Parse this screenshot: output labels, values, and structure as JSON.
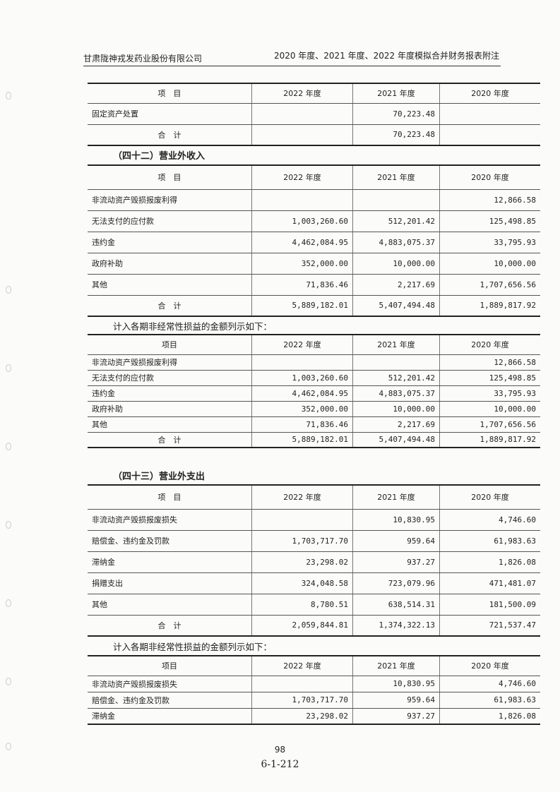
{
  "header": {
    "company": "甘肃陇神戎发药业股份有限公司",
    "report": "2020 年度、2021 年度、2022 年度模拟合并财务报表附注"
  },
  "columns": [
    "项　目",
    "2022 年度",
    "2021 年度",
    "2020 年度"
  ],
  "columns_alt": [
    "项目",
    "2022 年度",
    "2021 年度",
    "2020 年度"
  ],
  "total_label": "合　计",
  "table1": {
    "rows": [
      [
        "固定资产处置",
        "",
        "70,223.48",
        ""
      ]
    ],
    "total": [
      "",
      "70,223.48",
      ""
    ]
  },
  "section42": {
    "title": "（四十二）营业外收入"
  },
  "table2": {
    "rows": [
      [
        "非流动资产毁损报废利得",
        "",
        "",
        "12,866.58"
      ],
      [
        "无法支付的应付款",
        "1,003,260.60",
        "512,201.42",
        "125,498.85"
      ],
      [
        "违约金",
        "4,462,084.95",
        "4,883,075.37",
        "33,795.93"
      ],
      [
        "政府补助",
        "352,000.00",
        "10,000.00",
        "10,000.00"
      ],
      [
        "其他",
        "71,836.46",
        "2,217.69",
        "1,707,656.56"
      ]
    ],
    "total": [
      "5,889,182.01",
      "5,407,494.48",
      "1,889,817.92"
    ]
  },
  "note1": "计入各期非经常性损益的金额列示如下：",
  "table3": {
    "rows": [
      [
        "非流动资产毁损报废利得",
        "",
        "",
        "12,866.58"
      ],
      [
        "无法支付的应付款",
        "1,003,260.60",
        "512,201.42",
        "125,498.85"
      ],
      [
        "违约金",
        "4,462,084.95",
        "4,883,075.37",
        "33,795.93"
      ],
      [
        "政府补助",
        "352,000.00",
        "10,000.00",
        "10,000.00"
      ],
      [
        "其他",
        "71,836.46",
        "2,217.69",
        "1,707,656.56"
      ]
    ],
    "total": [
      "5,889,182.01",
      "5,407,494.48",
      "1,889,817.92"
    ]
  },
  "section43": {
    "title": "（四十三）营业外支出"
  },
  "table4": {
    "rows": [
      [
        "非流动资产毁损报废损失",
        "",
        "10,830.95",
        "4,746.60"
      ],
      [
        "赔偿金、违约金及罚款",
        "1,703,717.70",
        "959.64",
        "61,983.63"
      ],
      [
        "滞纳金",
        "23,298.02",
        "937.27",
        "1,826.08"
      ],
      [
        "捐赠支出",
        "324,048.58",
        "723,079.96",
        "471,481.07"
      ],
      [
        "其他",
        "8,780.51",
        "638,514.31",
        "181,500.09"
      ]
    ],
    "total": [
      "2,059,844.81",
      "1,374,322.13",
      "721,537.47"
    ]
  },
  "note2": "计入各期非经常性损益的金额列示如下：",
  "table5": {
    "rows": [
      [
        "非流动资产毁损报废损失",
        "",
        "10,830.95",
        "4,746.60"
      ],
      [
        "赔偿金、违约金及罚款",
        "1,703,717.70",
        "959.64",
        "61,983.63"
      ],
      [
        "滞纳金",
        "23,298.02",
        "937.27",
        "1,826.08"
      ]
    ]
  },
  "footer": {
    "page": "98",
    "code": "6-1-212"
  }
}
